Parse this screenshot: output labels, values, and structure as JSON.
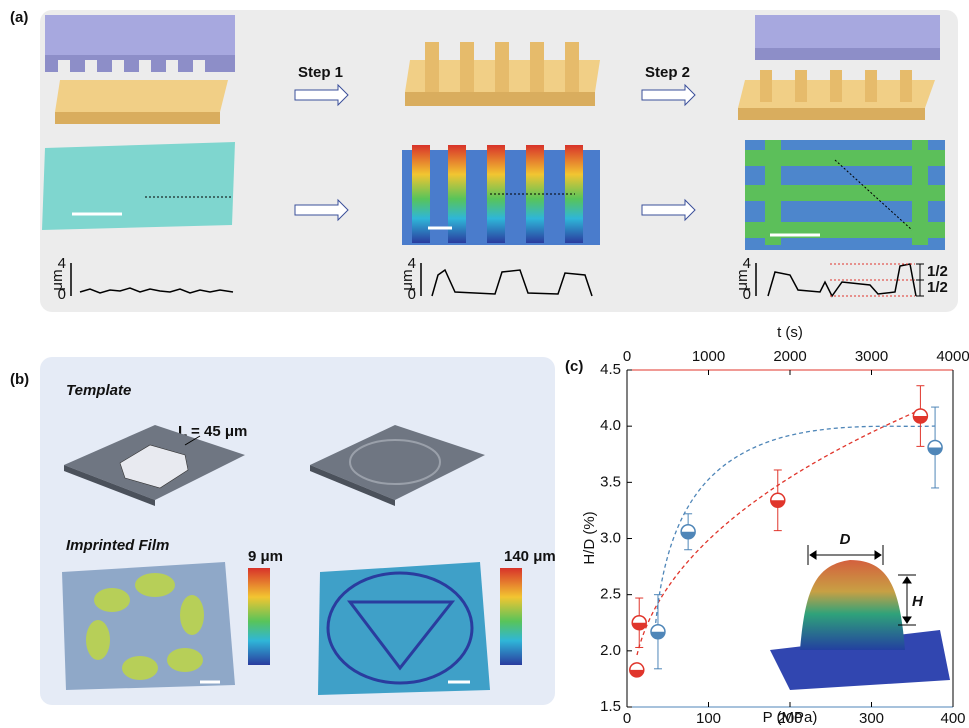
{
  "panel_a": {
    "label": "(a)",
    "step1": "Step 1",
    "step2": "Step 2",
    "profiles": [
      {
        "unit": "μm",
        "top": "4",
        "bottom": "0"
      },
      {
        "unit": "μm",
        "top": "4",
        "bottom": "0"
      },
      {
        "unit": "μm",
        "top": "4",
        "bottom": "0"
      }
    ],
    "fractions": [
      "1/2",
      "1/2"
    ]
  },
  "panel_b": {
    "label": "(b)",
    "template": "Template",
    "length_label": "L = 45 μm",
    "imprinted": "Imprinted Film",
    "scales": [
      "9 μm",
      "140 μm"
    ]
  },
  "chart_data": {
    "type": "scatter",
    "label": "(c)",
    "xlabel": "P (MPa)",
    "x2label": "t (s)",
    "ylabel": "H/D (%)",
    "xlim": [
      0,
      400
    ],
    "xticks": [
      0,
      100,
      200,
      300,
      400
    ],
    "x2lim": [
      0,
      4000
    ],
    "x2ticks": [
      0,
      1000,
      2000,
      3000,
      4000
    ],
    "ylim": [
      1.5,
      4.5
    ],
    "yticks": [
      1.5,
      {
        "value": 2,
        "label": "2.0"
      },
      2.5,
      {
        "value": 3,
        "label": "3.0"
      },
      3.5,
      {
        "value": 4,
        "label": "4.0"
      },
      4.5
    ],
    "series": [
      {
        "color": "#e0352b",
        "x": [
          12,
          15,
          185,
          360
        ],
        "values": [
          1.83,
          2.25,
          3.34,
          4.09
        ],
        "errors": [
          null,
          0.22,
          0.27,
          0.27
        ]
      },
      {
        "color": "#4f86b8",
        "axis": "x2",
        "x": [
          380,
          750,
          3780
        ],
        "values": [
          2.17,
          3.06,
          3.81
        ],
        "errors": [
          0.33,
          0.16,
          0.36
        ]
      }
    ],
    "annotations": [
      "D",
      "H"
    ]
  }
}
